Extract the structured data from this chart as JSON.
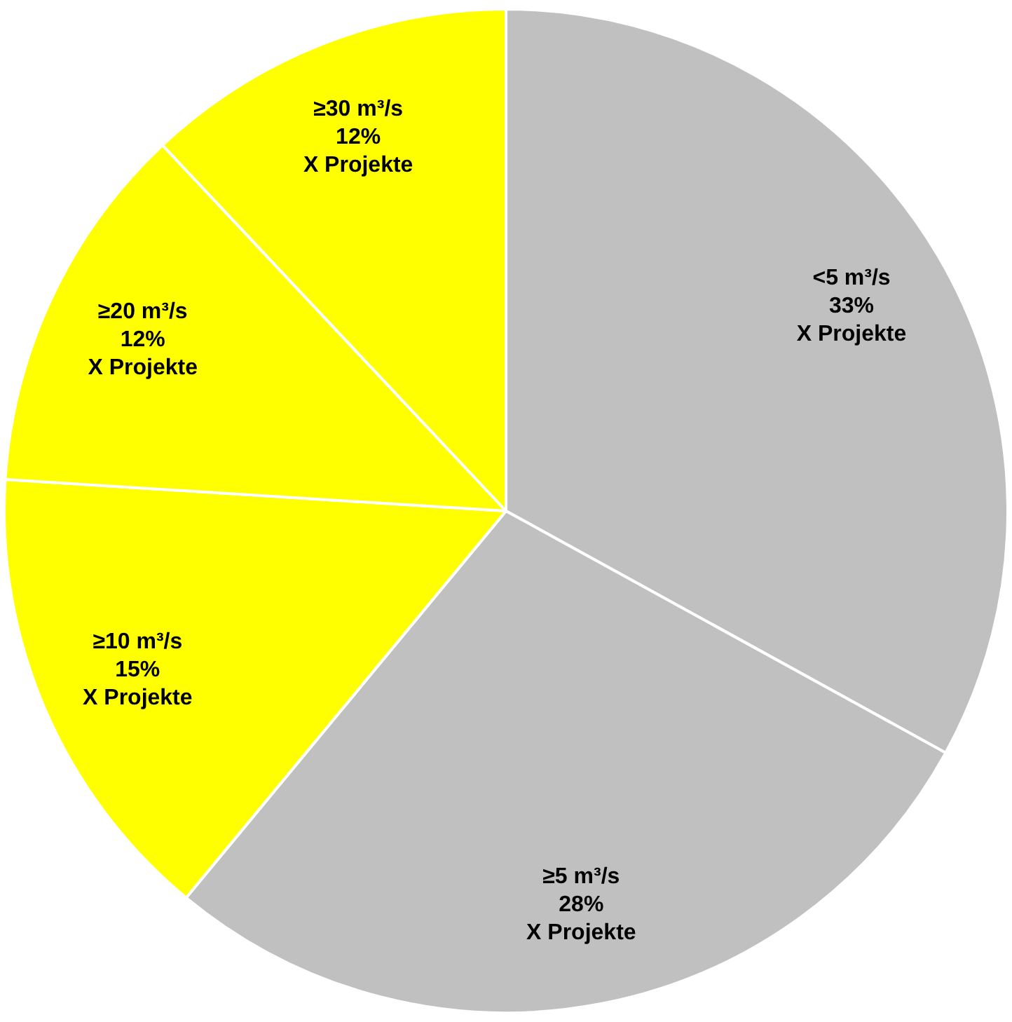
{
  "chart_data": {
    "type": "pie",
    "categories": [
      "<5 m³/s",
      "≥5 m³/s",
      "≥10 m³/s",
      "≥20 m³/s",
      "≥30 m³/s"
    ],
    "values": [
      33,
      28,
      15,
      12,
      12
    ],
    "colors": [
      "#c0c0c0",
      "#c0c0c0",
      "#ffff00",
      "#ffff00",
      "#ffff00"
    ],
    "value_labels": [
      "33%",
      "28%",
      "15%",
      "12%",
      "12%"
    ],
    "annotations": [
      "X Projekte",
      "X Projekte",
      "X Projekte",
      "X Projekte",
      "X Projekte"
    ],
    "legend": false
  }
}
